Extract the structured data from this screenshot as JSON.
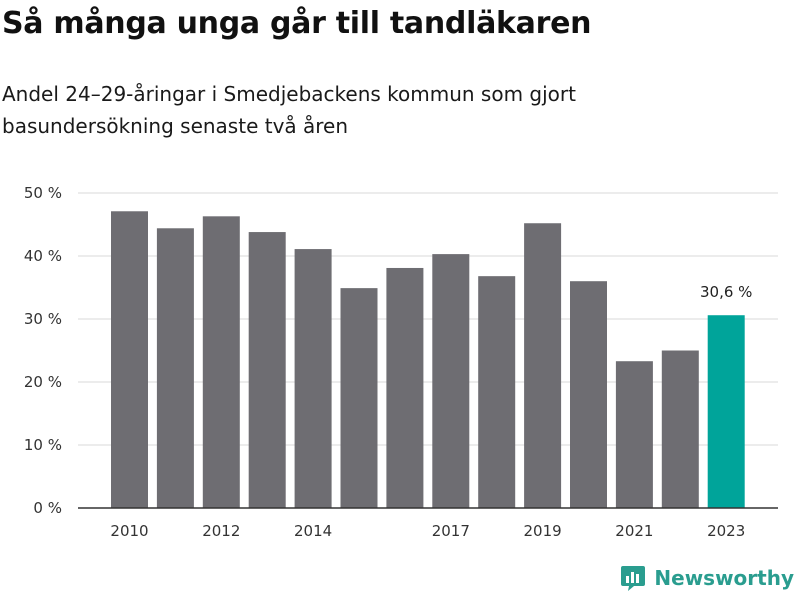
{
  "title": "Så många unga går till tandläkaren",
  "subtitle": "Andel 24–29-åringar i Smedjebackens kommun som gjort basundersökning senaste två åren",
  "brand": "Newsworthy",
  "colors": {
    "bar": "#6e6d72",
    "highlight": "#00a49a",
    "grid": "#d9d9d9",
    "axis": "#333333"
  },
  "chart_data": {
    "type": "bar",
    "categories": [
      "2010",
      "2011",
      "2012",
      "2013",
      "2014",
      "2015",
      "2016",
      "2017",
      "2018",
      "2019",
      "2020",
      "2021",
      "2022",
      "2023"
    ],
    "tick_labels": [
      "2010",
      "",
      "2012",
      "",
      "2014",
      "",
      "",
      "2017",
      "",
      "2019",
      "",
      "2021",
      "",
      "2023"
    ],
    "values": [
      47.1,
      44.4,
      46.3,
      43.8,
      41.1,
      34.9,
      38.1,
      40.3,
      36.8,
      45.2,
      36.0,
      23.3,
      25.0,
      30.6
    ],
    "highlight_index": 13,
    "data_labels": [
      {
        "index": 13,
        "text": "30,6 %"
      }
    ],
    "y_ticks": [
      0,
      10,
      20,
      30,
      40,
      50
    ],
    "y_tick_labels": [
      "0 %",
      "10 %",
      "20 %",
      "30 %",
      "40 %",
      "50 %"
    ],
    "ylim": [
      0,
      50
    ],
    "grid": true,
    "xlabel": "",
    "ylabel": ""
  }
}
